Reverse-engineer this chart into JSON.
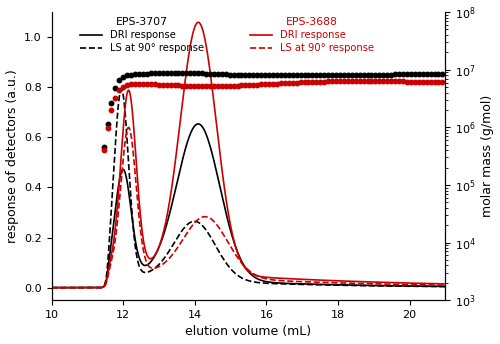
{
  "xlim": [
    10,
    21
  ],
  "ylim_left": [
    -0.05,
    1.1
  ],
  "ylim_right": [
    1000.0,
    100000000.0
  ],
  "xlabel": "elution volume (mL)",
  "ylabel_left": "response of detectors (a.u.)",
  "ylabel_right": "molar mass (g/mol)",
  "black_color": "#000000",
  "red_color": "#cc0000",
  "figsize": [
    5.0,
    3.44
  ],
  "dpi": 100,
  "xticks": [
    10,
    12,
    14,
    16,
    18,
    20
  ]
}
